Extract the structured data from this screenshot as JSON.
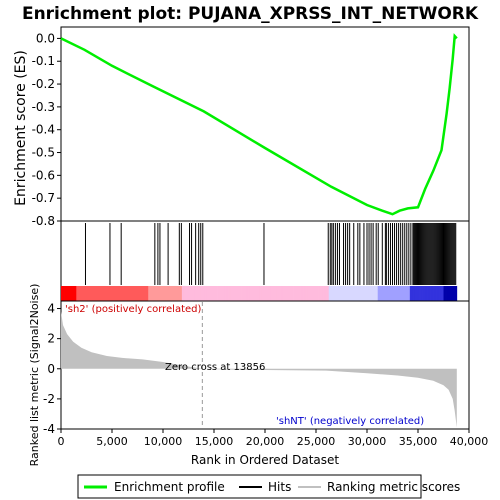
{
  "chart_data": {
    "type": "line",
    "title": "Enrichment plot: PUJANA_XPRSS_INT_NETWORK",
    "es_panel": {
      "ylabel": "Enrichment score (ES)",
      "ylim": [
        -0.8,
        0.05
      ],
      "yticks": [
        0.0,
        -0.1,
        -0.2,
        -0.3,
        -0.4,
        -0.5,
        -0.6,
        -0.7,
        -0.8
      ],
      "ytick_labels": [
        "0.0",
        "-0.1",
        "-0.2",
        "-0.3",
        "-0.4",
        "-0.5",
        "-0.6",
        "-0.7",
        "-0.8"
      ],
      "series": [
        {
          "name": "Enrichment profile",
          "color": "#00ee00",
          "x": [
            0,
            2300,
            5000,
            9000,
            14000,
            20000,
            26500,
            30000,
            31500,
            32500,
            33200,
            34000,
            35000,
            35700,
            36500,
            37300,
            37800,
            38100,
            38400,
            38600,
            38800
          ],
          "y": [
            0.0,
            -0.05,
            -0.12,
            -0.21,
            -0.32,
            -0.48,
            -0.65,
            -0.73,
            -0.755,
            -0.77,
            -0.755,
            -0.745,
            -0.74,
            -0.66,
            -0.58,
            -0.49,
            -0.33,
            -0.22,
            -0.09,
            0.01,
            0.0
          ]
        }
      ]
    },
    "hits_panel": {
      "legend_name": "Hits",
      "hit_positions": [
        2400,
        4800,
        5900,
        9200,
        9500,
        9700,
        10500,
        11600,
        11800,
        12600,
        12800,
        13200,
        13500,
        13700,
        13900,
        19900,
        26200,
        26400,
        26550,
        26700,
        26900,
        27100,
        27300,
        27700,
        27900,
        28100,
        28300,
        28700,
        29100,
        29300,
        29700,
        30000,
        30200,
        30400,
        30600,
        30900,
        31100,
        31500,
        31800,
        31900,
        32100,
        32300,
        32500,
        32700,
        32900,
        33100,
        33300,
        33500,
        33700,
        33900,
        34100,
        34300,
        34500,
        34600,
        34700,
        34800,
        34900,
        35000,
        35100,
        35200,
        35300,
        35400,
        35500,
        35600,
        35700,
        35800,
        35900,
        36000,
        36100,
        36200,
        36300,
        36400,
        36500,
        36600,
        36700,
        36800,
        36900,
        37000,
        37100,
        37200,
        37300,
        37400,
        37500,
        37600,
        37700,
        37800,
        37900,
        38000,
        38100,
        38200,
        38300,
        38400,
        38500,
        38600,
        38700
      ]
    },
    "metric_panel": {
      "ylabel": "Ranked list metric (Signal2Noise)",
      "ylim": [
        -4,
        4.5
      ],
      "yticks": [
        4,
        2,
        0,
        -2,
        -4
      ],
      "ytick_labels": [
        "4",
        "2",
        "0",
        "-2",
        "-4"
      ],
      "legend_name": "Ranking metric scores",
      "fill_color": "#c0c0c0",
      "profile_x": [
        0,
        200,
        600,
        1200,
        2000,
        3000,
        4500,
        6000,
        8000,
        10000,
        12000,
        13856,
        16000,
        20000,
        26000,
        30000,
        33000,
        35000,
        36500,
        37500,
        38000,
        38400,
        38600,
        38800
      ],
      "profile_y": [
        3.8,
        2.9,
        2.3,
        1.8,
        1.4,
        1.1,
        0.85,
        0.72,
        0.62,
        0.45,
        0.2,
        0.0,
        -0.05,
        -0.08,
        -0.12,
        -0.3,
        -0.45,
        -0.6,
        -0.8,
        -1.1,
        -1.4,
        -2.0,
        -2.8,
        -3.9
      ],
      "positive_label": "'sh2' (positively correlated)",
      "negative_label": "'shNT' (negatively correlated)",
      "zero_cross_label": "Zero cross at 13856",
      "zero_cross": 13856
    },
    "xlabel": "Rank in Ordered Dataset",
    "xlim": [
      0,
      40000
    ],
    "xticks": [
      0,
      5000,
      10000,
      15000,
      20000,
      25000,
      30000,
      35000,
      40000
    ],
    "xtick_labels": [
      "0",
      "5,000",
      "10,000",
      "15,000",
      "20,000",
      "25,000",
      "30,000",
      "35,000",
      "40,000"
    ],
    "list_size": 38800,
    "legend_placement": "bottom",
    "legend": [
      {
        "name": "Enrichment profile",
        "color": "#00ee00"
      },
      {
        "name": "Hits",
        "color": "#000000"
      },
      {
        "name": "Ranking metric scores",
        "color": "#c0c0c0"
      }
    ]
  }
}
